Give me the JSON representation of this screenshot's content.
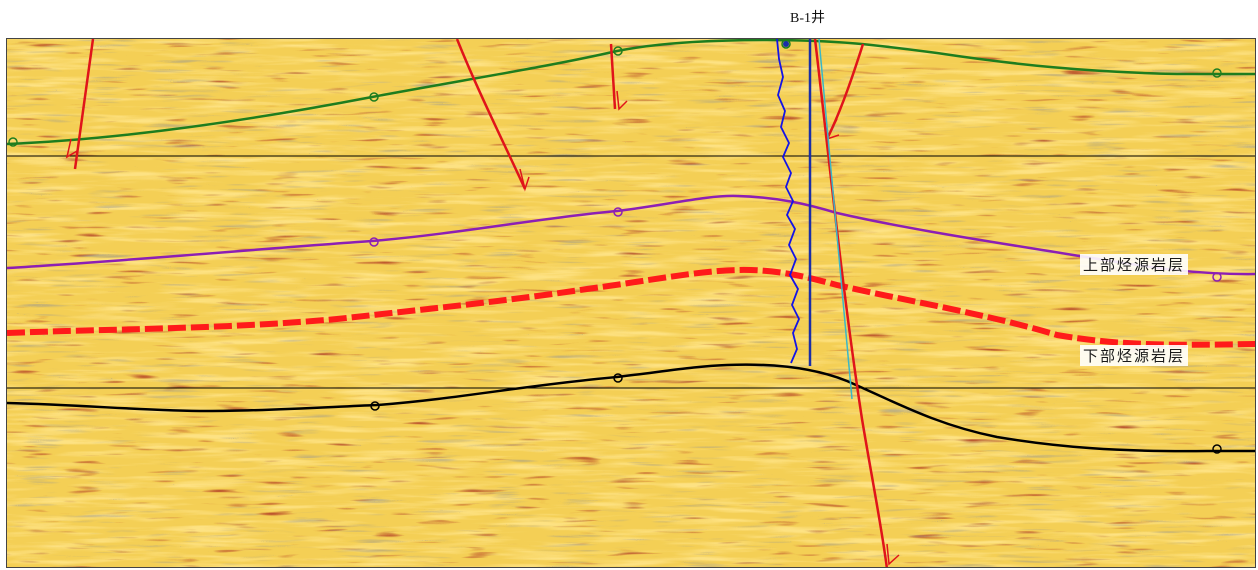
{
  "well": {
    "name": "B-1井"
  },
  "labels": {
    "upper_source_rock": "上部烃源岩层",
    "lower_source_rock": "下部烃源岩层"
  },
  "colors": {
    "background": "#f6d46a",
    "fault": "#e0141a",
    "horizon_top": "#1e7d1e",
    "horizon_middle": "#8c1fb4",
    "horizon_upper_source": "#ff1a1a",
    "horizon_lower": "#000000",
    "well_log": "#1414e6",
    "well_path": "#1a2fa8"
  },
  "icons": [
    "well-marker-icon",
    "fault-arrow-icon",
    "horizon-pick-icon"
  ]
}
